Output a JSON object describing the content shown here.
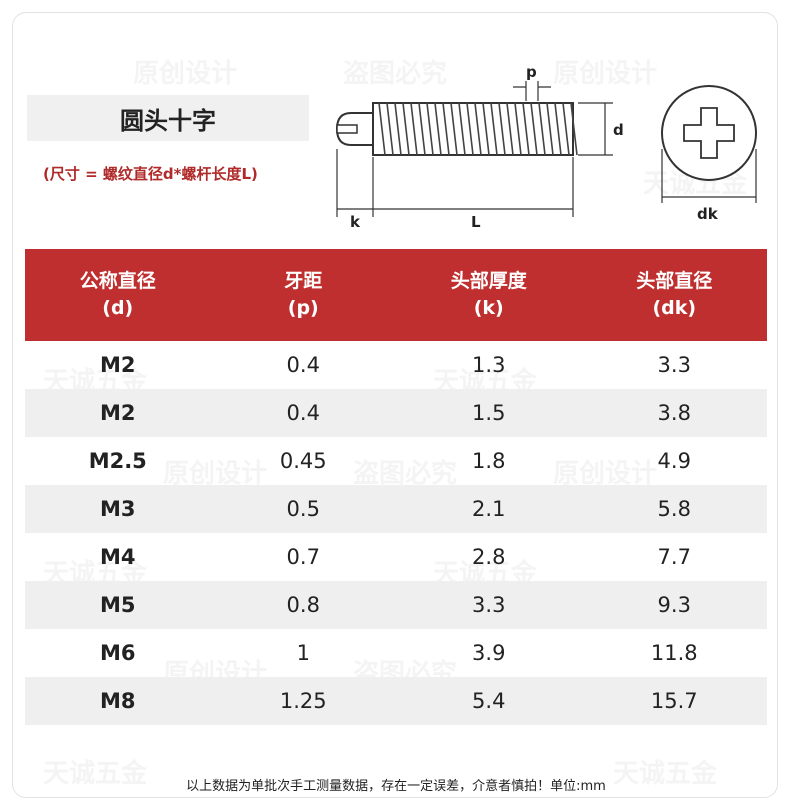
{
  "title": "圆头十字",
  "size_formula": "(尺寸 = 螺纹直径d*螺杆长度L)",
  "diagram_labels": {
    "p": "p",
    "d": "d",
    "k": "k",
    "L": "L",
    "dk": "dk"
  },
  "table": {
    "headers": [
      {
        "name": "公称直径",
        "symbol": "(d)"
      },
      {
        "name": "牙距",
        "symbol": "(p)"
      },
      {
        "name": "头部厚度",
        "symbol": "(k)"
      },
      {
        "name": "头部直径",
        "symbol": "(dk)"
      }
    ],
    "rows": [
      [
        "M2",
        "0.4",
        "1.3",
        "3.3"
      ],
      [
        "M2",
        "0.4",
        "1.5",
        "3.8"
      ],
      [
        "M2.5",
        "0.45",
        "1.8",
        "4.9"
      ],
      [
        "M3",
        "0.5",
        "2.1",
        "5.8"
      ],
      [
        "M4",
        "0.7",
        "2.8",
        "7.7"
      ],
      [
        "M5",
        "0.8",
        "3.3",
        "9.3"
      ],
      [
        "M6",
        "1",
        "3.9",
        "11.8"
      ],
      [
        "M8",
        "1.25",
        "5.4",
        "15.7"
      ]
    ]
  },
  "footer": "以上数据为单批次手工测量数据，存在一定误差，介意者慎拍！单位:mm",
  "watermarks": [
    "原创设计",
    "盗图必究",
    "天诚五金"
  ],
  "colors": {
    "header_bg": "#bf2f2f",
    "formula_text": "#b02a2a",
    "alt_row": "#efefef"
  }
}
